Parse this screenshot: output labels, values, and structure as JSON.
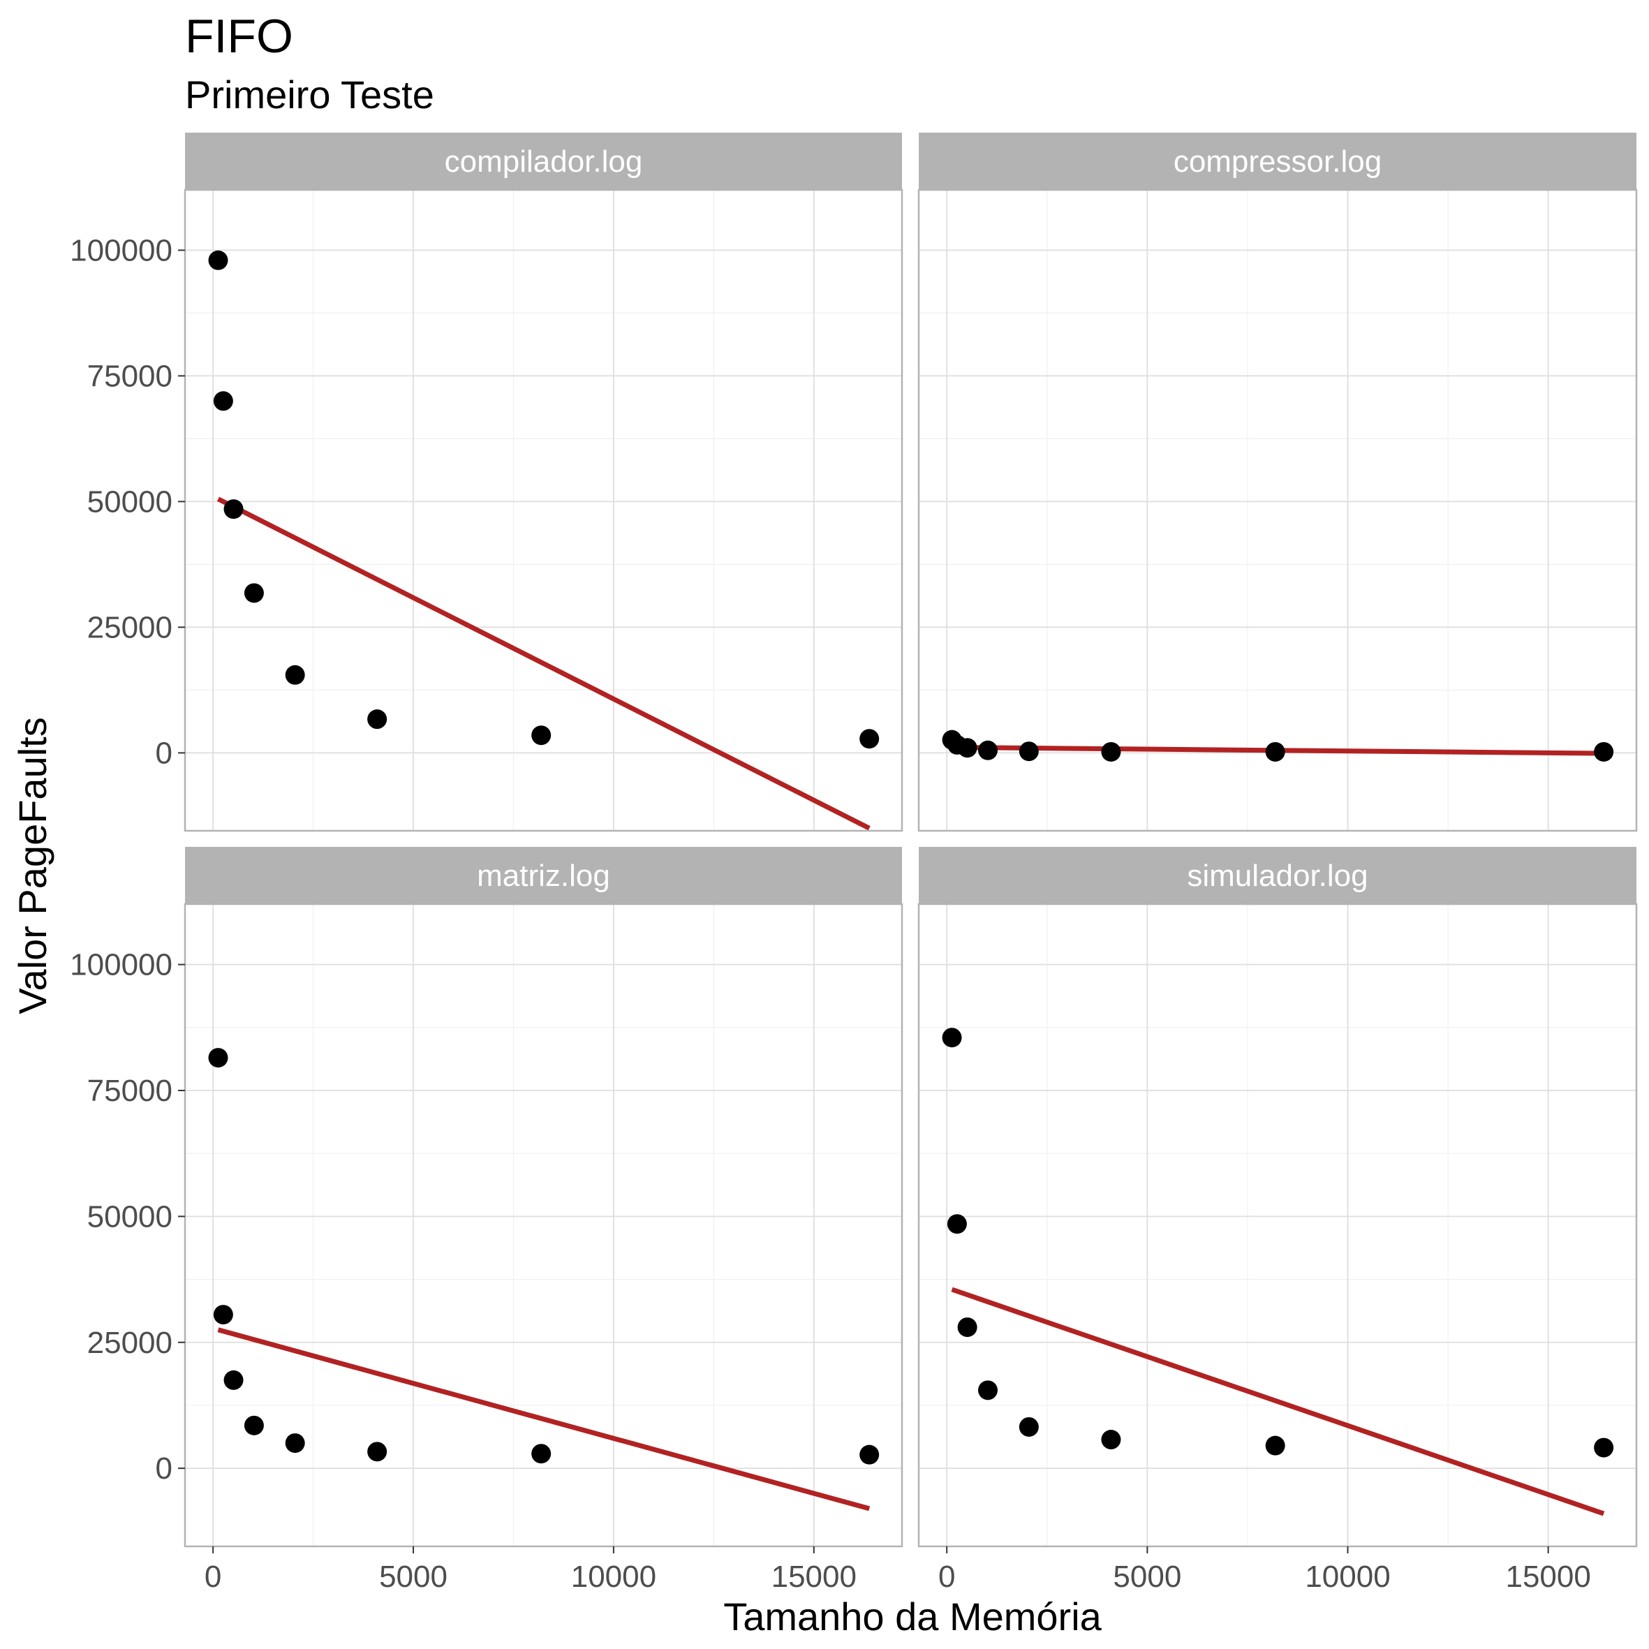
{
  "chart_data": {
    "type": "scatter",
    "title": "FIFO",
    "subtitle": "Primeiro Teste",
    "xlabel": "Tamanho da Memória",
    "ylabel": "Valor PageFaults",
    "xlim": [
      -700,
      17200
    ],
    "ylim": [
      -15500,
      112000
    ],
    "x_ticks": [
      0,
      5000,
      10000,
      15000
    ],
    "y_ticks": [
      0,
      25000,
      50000,
      75000,
      100000
    ],
    "grid": true,
    "point_color": "#000000",
    "line_color": "#B22222",
    "strip_color": "#B3B3B3",
    "panels": [
      {
        "label": "compilador.log",
        "x": [
          128,
          256,
          512,
          1024,
          2048,
          4096,
          8192,
          16384
        ],
        "y": [
          98000,
          70000,
          48500,
          31800,
          15500,
          6700,
          3500,
          2800
        ],
        "fit": {
          "x": [
            128,
            16384
          ],
          "y": [
            50500,
            -15000
          ]
        }
      },
      {
        "label": "compressor.log",
        "x": [
          128,
          256,
          512,
          1024,
          2048,
          4096,
          8192,
          16384
        ],
        "y": [
          2600,
          1600,
          1000,
          500,
          300,
          200,
          200,
          200
        ],
        "fit": {
          "x": [
            128,
            16384
          ],
          "y": [
            1100,
            -100
          ]
        }
      },
      {
        "label": "matriz.log",
        "x": [
          128,
          256,
          512,
          1024,
          2048,
          4096,
          8192,
          16384
        ],
        "y": [
          81500,
          30500,
          17500,
          8500,
          5000,
          3300,
          2900,
          2700
        ],
        "fit": {
          "x": [
            128,
            16384
          ],
          "y": [
            27500,
            -8000
          ]
        }
      },
      {
        "label": "simulador.log",
        "x": [
          128,
          256,
          512,
          1024,
          2048,
          4096,
          8192,
          16384
        ],
        "y": [
          85500,
          48500,
          28000,
          15500,
          8200,
          5700,
          4500,
          4100
        ],
        "fit": {
          "x": [
            128,
            16384
          ],
          "y": [
            35500,
            -9000
          ]
        }
      }
    ]
  }
}
